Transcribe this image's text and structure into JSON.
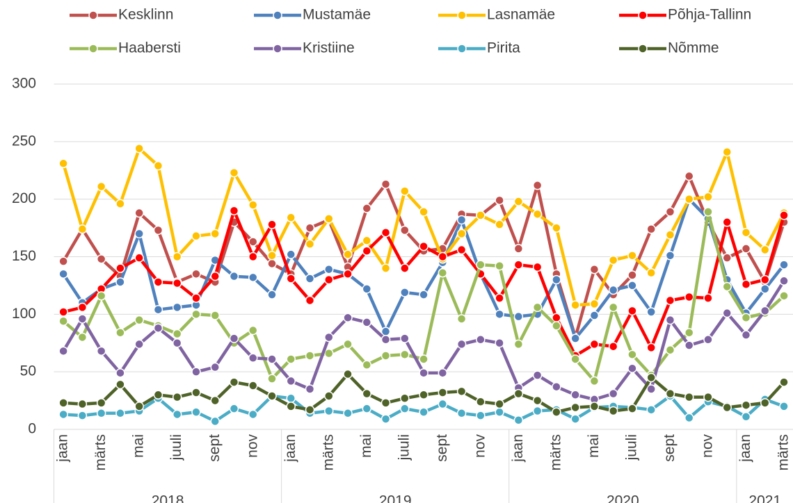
{
  "chart_data": {
    "type": "line",
    "categories": [
      "jaan",
      null,
      "märts",
      null,
      "mai",
      null,
      "juuli",
      null,
      "sept",
      null,
      "nov",
      null,
      "jaan",
      null,
      "märts",
      null,
      "mai",
      null,
      "juuli",
      null,
      "sept",
      null,
      "nov",
      null,
      "jaan",
      null,
      "märts",
      null,
      "mai",
      null,
      "juuli",
      null,
      "sept",
      null,
      "nov",
      null,
      "jaan",
      null,
      "märts"
    ],
    "x_groups": [
      {
        "label": "2018",
        "size": 12
      },
      {
        "label": "2019",
        "size": 12
      },
      {
        "label": "2020",
        "size": 12
      },
      {
        "label": "2021",
        "size": 3
      }
    ],
    "ylim": [
      0,
      300
    ],
    "yticks": [
      0,
      50,
      100,
      150,
      200,
      250,
      300
    ],
    "grid": true,
    "legend": "top",
    "series": [
      {
        "name": "Kesklinn",
        "color": "#c0504d",
        "values": [
          146,
          174,
          148,
          133,
          188,
          173,
          128,
          135,
          128,
          180,
          163,
          144,
          135,
          175,
          182,
          141,
          192,
          213,
          173,
          155,
          157,
          187,
          186,
          199,
          157,
          212,
          135,
          80,
          139,
          117,
          134,
          174,
          189,
          220,
          180,
          149,
          157,
          128,
          180
        ]
      },
      {
        "name": "Mustamäe",
        "color": "#4f81bd",
        "values": [
          135,
          110,
          122,
          128,
          170,
          104,
          106,
          108,
          147,
          133,
          132,
          117,
          152,
          131,
          139,
          135,
          122,
          85,
          119,
          117,
          145,
          182,
          135,
          100,
          98,
          100,
          130,
          79,
          99,
          121,
          125,
          102,
          151,
          200,
          183,
          130,
          101,
          122,
          143
        ]
      },
      {
        "name": "Lasnamäe",
        "color": "#ffc000",
        "values": [
          231,
          174,
          211,
          196,
          244,
          229,
          150,
          168,
          170,
          223,
          195,
          151,
          184,
          161,
          183,
          152,
          164,
          140,
          207,
          189,
          148,
          170,
          186,
          178,
          198,
          187,
          175,
          108,
          109,
          147,
          151,
          136,
          169,
          200,
          202,
          241,
          171,
          156,
          188
        ]
      },
      {
        "name": "Põhja-Tallinn",
        "color": "#ff0000",
        "values": [
          102,
          106,
          122,
          140,
          149,
          128,
          127,
          114,
          133,
          190,
          150,
          178,
          131,
          112,
          130,
          135,
          155,
          171,
          140,
          159,
          150,
          156,
          135,
          114,
          143,
          141,
          97,
          64,
          74,
          72,
          103,
          71,
          112,
          115,
          114,
          180,
          126,
          130,
          186
        ]
      },
      {
        "name": "Haabersti",
        "color": "#9bbb59",
        "values": [
          94,
          80,
          116,
          84,
          95,
          90,
          83,
          100,
          99,
          75,
          86,
          44,
          61,
          64,
          66,
          74,
          56,
          64,
          65,
          61,
          136,
          96,
          143,
          142,
          74,
          106,
          90,
          61,
          42,
          106,
          65,
          47,
          69,
          84,
          189,
          124,
          97,
          101,
          116
        ]
      },
      {
        "name": "Kristiine",
        "color": "#8064a2",
        "values": [
          68,
          96,
          68,
          49,
          74,
          88,
          75,
          50,
          54,
          79,
          62,
          61,
          42,
          35,
          80,
          97,
          93,
          78,
          79,
          49,
          49,
          74,
          78,
          75,
          36,
          47,
          37,
          30,
          26,
          31,
          53,
          35,
          95,
          73,
          78,
          101,
          82,
          103,
          129
        ]
      },
      {
        "name": "Pirita",
        "color": "#4bacc6",
        "values": [
          13,
          12,
          14,
          14,
          16,
          27,
          13,
          15,
          7,
          18,
          13,
          29,
          27,
          14,
          16,
          14,
          18,
          9,
          18,
          15,
          22,
          14,
          12,
          15,
          8,
          16,
          17,
          9,
          19,
          20,
          19,
          17,
          29,
          10,
          24,
          20,
          11,
          26,
          20
        ]
      },
      {
        "name": "Nõmme",
        "color": "#4f6228",
        "values": [
          23,
          22,
          23,
          39,
          20,
          30,
          28,
          32,
          25,
          41,
          38,
          29,
          20,
          17,
          29,
          48,
          31,
          23,
          27,
          30,
          32,
          33,
          24,
          22,
          31,
          25,
          15,
          19,
          20,
          16,
          18,
          45,
          31,
          28,
          28,
          19,
          21,
          23,
          41
        ]
      }
    ]
  }
}
